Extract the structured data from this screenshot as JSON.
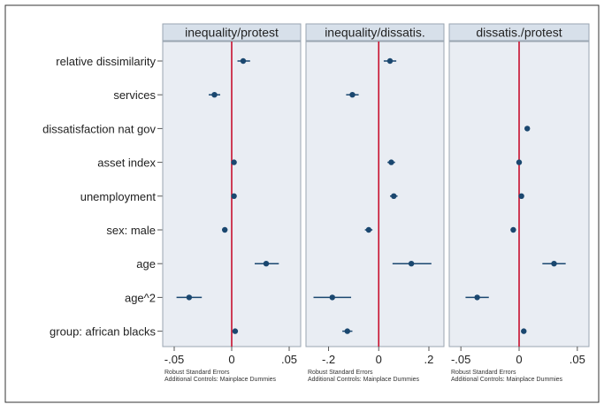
{
  "colors": {
    "panel_bg": "#ffffff",
    "header_bg": "#d7e0ea",
    "plot_bg": "#e9edf3",
    "point": "#1a476f",
    "zero_line": "#c8102e",
    "border": "#9aa5b1",
    "text": "#222222",
    "outer_border": "#333333"
  },
  "chart_data": {
    "type": "scatter",
    "style": "coefficient plot with confidence intervals, three panels sharing y categories",
    "categories": [
      "relative dissimilarity",
      "services",
      "dissatisfaction nat gov",
      "asset index",
      "unemployment",
      "sex: male",
      "age",
      "age^2",
      "group: african blacks"
    ],
    "reference_line": 0,
    "grid": false,
    "panels": [
      {
        "title": "inequality/protest",
        "xlim": [
          -0.06,
          0.06
        ],
        "xticks": [
          -0.05,
          0,
          0.05
        ],
        "xtick_labels": [
          "-.05",
          "0",
          ".05"
        ],
        "notes": [
          "Robust Standard Errors",
          "Additional Controls: Mainplace Dummies"
        ],
        "points": [
          {
            "category": "relative dissimilarity",
            "est": 0.01,
            "lo": 0.005,
            "hi": 0.016
          },
          {
            "category": "services",
            "est": -0.015,
            "lo": -0.02,
            "hi": -0.01
          },
          {
            "category": "asset index",
            "est": 0.002,
            "lo": 0.001,
            "hi": 0.003
          },
          {
            "category": "unemployment",
            "est": 0.002,
            "lo": 0.0,
            "hi": 0.004
          },
          {
            "category": "sex: male",
            "est": -0.006,
            "lo": -0.008,
            "hi": -0.004
          },
          {
            "category": "age",
            "est": 0.03,
            "lo": 0.02,
            "hi": 0.041
          },
          {
            "category": "age^2",
            "est": -0.037,
            "lo": -0.048,
            "hi": -0.026
          },
          {
            "category": "group: african blacks",
            "est": 0.003,
            "lo": 0.001,
            "hi": 0.005
          }
        ]
      },
      {
        "title": "inequality/dissatis.",
        "xlim": [
          -0.29,
          0.26
        ],
        "xticks": [
          -0.2,
          0,
          0.2
        ],
        "xtick_labels": [
          "-.2",
          "0",
          ".2"
        ],
        "notes": [
          "Robust Standard Errors",
          "Additional Controls: Mainplace Dummies"
        ],
        "points": [
          {
            "category": "relative dissimilarity",
            "est": 0.045,
            "lo": 0.02,
            "hi": 0.07
          },
          {
            "category": "services",
            "est": -0.105,
            "lo": -0.13,
            "hi": -0.08
          },
          {
            "category": "asset index",
            "est": 0.05,
            "lo": 0.035,
            "hi": 0.065
          },
          {
            "category": "unemployment",
            "est": 0.06,
            "lo": 0.045,
            "hi": 0.075
          },
          {
            "category": "sex: male",
            "est": -0.04,
            "lo": -0.055,
            "hi": -0.025
          },
          {
            "category": "age",
            "est": 0.13,
            "lo": 0.055,
            "hi": 0.21
          },
          {
            "category": "age^2",
            "est": -0.185,
            "lo": -0.26,
            "hi": -0.11
          },
          {
            "category": "group: african blacks",
            "est": -0.125,
            "lo": -0.145,
            "hi": -0.105
          }
        ]
      },
      {
        "title": "dissatis./protest",
        "xlim": [
          -0.06,
          0.06
        ],
        "xticks": [
          -0.05,
          0,
          0.05
        ],
        "xtick_labels": [
          "-.05",
          "0",
          ".05"
        ],
        "notes": [
          "Robust Standard Errors",
          "Additional Controls: Mainplace Dummies"
        ],
        "points": [
          {
            "category": "dissatisfaction nat gov",
            "est": 0.007,
            "lo": 0.005,
            "hi": 0.009
          },
          {
            "category": "asset index",
            "est": 0.0,
            "lo": -0.002,
            "hi": 0.002
          },
          {
            "category": "unemployment",
            "est": 0.002,
            "lo": 0.0,
            "hi": 0.004
          },
          {
            "category": "sex: male",
            "est": -0.005,
            "lo": -0.007,
            "hi": -0.003
          },
          {
            "category": "age",
            "est": 0.03,
            "lo": 0.02,
            "hi": 0.04
          },
          {
            "category": "age^2",
            "est": -0.036,
            "lo": -0.046,
            "hi": -0.026
          },
          {
            "category": "group: african blacks",
            "est": 0.004,
            "lo": 0.002,
            "hi": 0.006
          }
        ]
      }
    ]
  }
}
